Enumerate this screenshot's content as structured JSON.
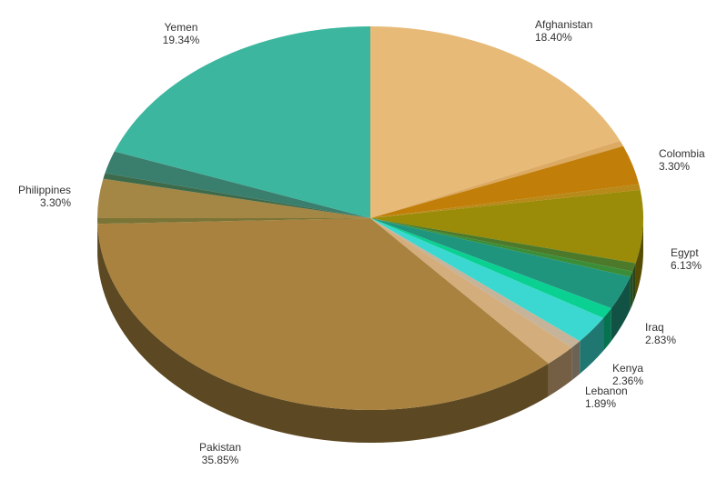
{
  "chart_data": {
    "type": "pie",
    "categories": [
      "Afghanistan",
      "",
      "Colombia",
      "",
      "Egypt",
      "",
      "",
      "Iraq",
      "",
      "Kenya",
      "",
      "Lebanon",
      "Pakistan",
      "",
      "Philippines",
      "",
      "",
      "Yemen"
    ],
    "values": [
      18.4,
      0.47,
      3.3,
      0.47,
      6.13,
      0.71,
      0.47,
      2.83,
      0.94,
      2.36,
      0.71,
      1.89,
      35.85,
      0.47,
      3.3,
      0.47,
      1.89,
      19.34
    ],
    "value_labels": [
      "18.40%",
      "",
      "3.30%",
      "",
      "6.13%",
      "",
      "",
      "2.83%",
      "",
      "2.36%",
      "",
      "1.89%",
      "35.85%",
      "",
      "3.30%",
      "",
      "",
      "19.34%"
    ],
    "colors": [
      "#e8ba78",
      "#dcaa62",
      "#c17e08",
      "#b88a1a",
      "#9a8c08",
      "#4c7a2a",
      "#3b8e37",
      "#20957e",
      "#0ad091",
      "#3ad8d0",
      "#c5b39a",
      "#d3ad7c",
      "#a8823e",
      "#7a7436",
      "#a58745",
      "#3c6a4a",
      "#3a7e6e",
      "#3cb69e"
    ],
    "legend": "none",
    "style": "3d"
  }
}
